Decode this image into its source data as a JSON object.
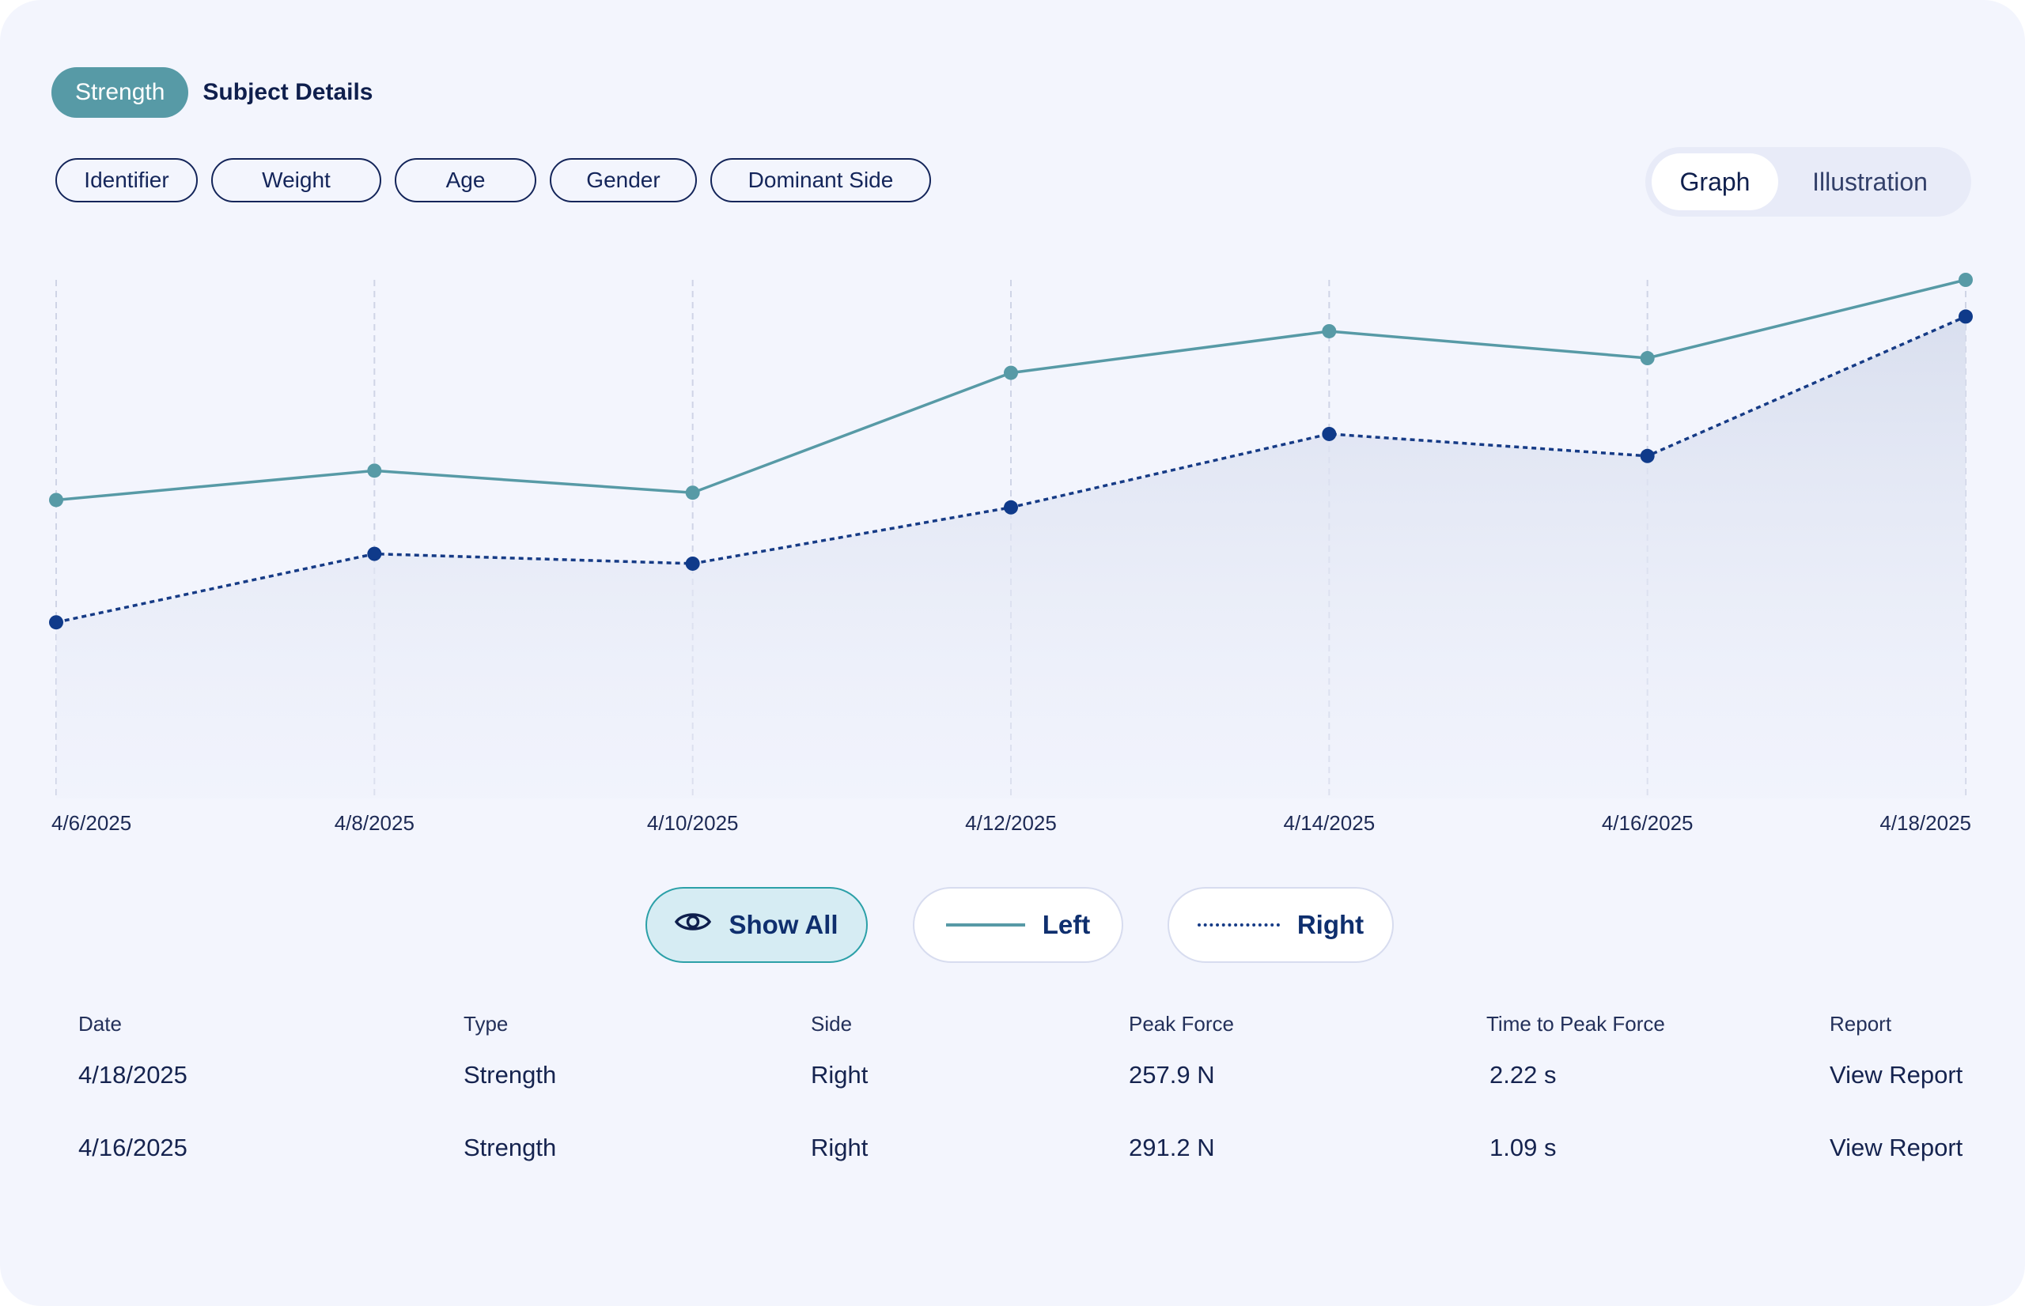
{
  "tabs": {
    "active": "Strength",
    "secondary": "Subject Details"
  },
  "filters": [
    "Identifier",
    "Weight",
    "Age",
    "Gender",
    "Dominant Side"
  ],
  "view_toggle": {
    "graph": "Graph",
    "illustration": "Illustration",
    "selected": "Graph"
  },
  "legend": {
    "show_all": "Show All",
    "left": "Left",
    "right": "Right"
  },
  "colors": {
    "accent_teal": "#579aa6",
    "navy": "#0f3a8a",
    "background": "#f3f5fd"
  },
  "chart_data": {
    "type": "line",
    "x_tick_labels": [
      "4/6/2025",
      "4/8/2025",
      "4/10/2025",
      "4/12/2025",
      "4/14/2025",
      "4/16/2025",
      "4/18/2025"
    ],
    "grid": "vertical dashed",
    "series": [
      {
        "name": "Left",
        "style": "solid",
        "color": "#579aa6",
        "values": [
          61,
          67,
          62.5,
          87,
          95.5,
          90,
          106
        ]
      },
      {
        "name": "Right",
        "style": "dotted",
        "color": "#0f3a8a",
        "values": [
          36,
          50,
          48,
          59.5,
          74.5,
          70,
          98.5
        ],
        "area_fill": true
      }
    ],
    "ylim": [
      0,
      106
    ]
  },
  "table": {
    "headers": [
      "Date",
      "Type",
      "Side",
      "Peak Force",
      "Time to Peak Force",
      "Report"
    ],
    "rows": [
      {
        "date": "4/18/2025",
        "type": "Strength",
        "side": "Right",
        "peak": "257.9 N",
        "time": "2.22 s",
        "report": "View Report"
      },
      {
        "date": "4/16/2025",
        "type": "Strength",
        "side": "Right",
        "peak": "291.2 N",
        "time": "1.09 s",
        "report": "View Report"
      }
    ]
  }
}
